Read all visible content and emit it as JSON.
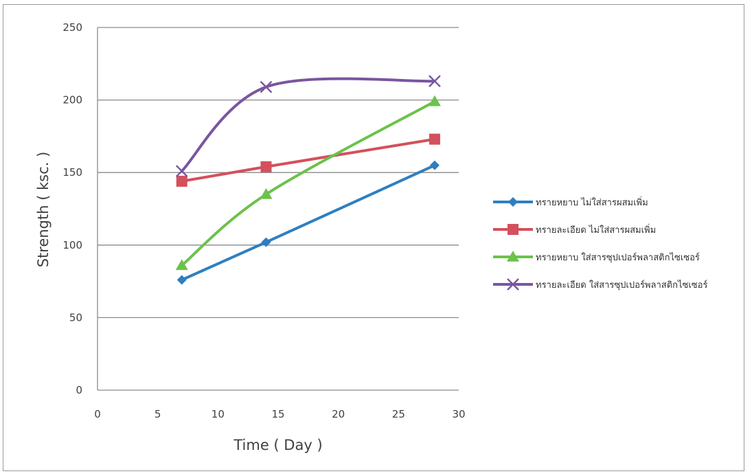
{
  "chart_data": {
    "type": "line",
    "title": "",
    "xlabel": "Time ( Day )",
    "ylabel": "Strength ( ksc. )",
    "xlim": [
      0,
      30
    ],
    "ylim": [
      0,
      250
    ],
    "xticks": [
      0,
      5,
      10,
      15,
      20,
      25,
      30
    ],
    "yticks": [
      0,
      50,
      100,
      150,
      200,
      250
    ],
    "grid": "horizontal",
    "legend_position": "right",
    "series": [
      {
        "name": "ทรายหยาบ ไม่ใส่สารผสมเพิ่ม",
        "color": "#2e7fc0",
        "marker": "diamond",
        "x": [
          7,
          14,
          28
        ],
        "y": [
          76,
          102,
          155
        ]
      },
      {
        "name": "ทรายละเอียด ไม่ใส่สารผสมเพิ่ม",
        "color": "#d4505c",
        "marker": "square",
        "x": [
          7,
          14,
          28
        ],
        "y": [
          144,
          154,
          173
        ]
      },
      {
        "name": "ทรายหยาบ ใส่สารซุปเปอร์พลาสติกไซเซอร์",
        "color": "#6cc24a",
        "marker": "triangle",
        "x": [
          7,
          14,
          28
        ],
        "y": [
          86,
          135,
          199
        ]
      },
      {
        "name": "ทรายละเอียด ใส่สารซุปเปอร์พลาสติกไซเซอร์",
        "color": "#7a55a0",
        "marker": "x",
        "x": [
          7,
          14,
          28
        ],
        "y": [
          151,
          209,
          213
        ]
      }
    ]
  }
}
